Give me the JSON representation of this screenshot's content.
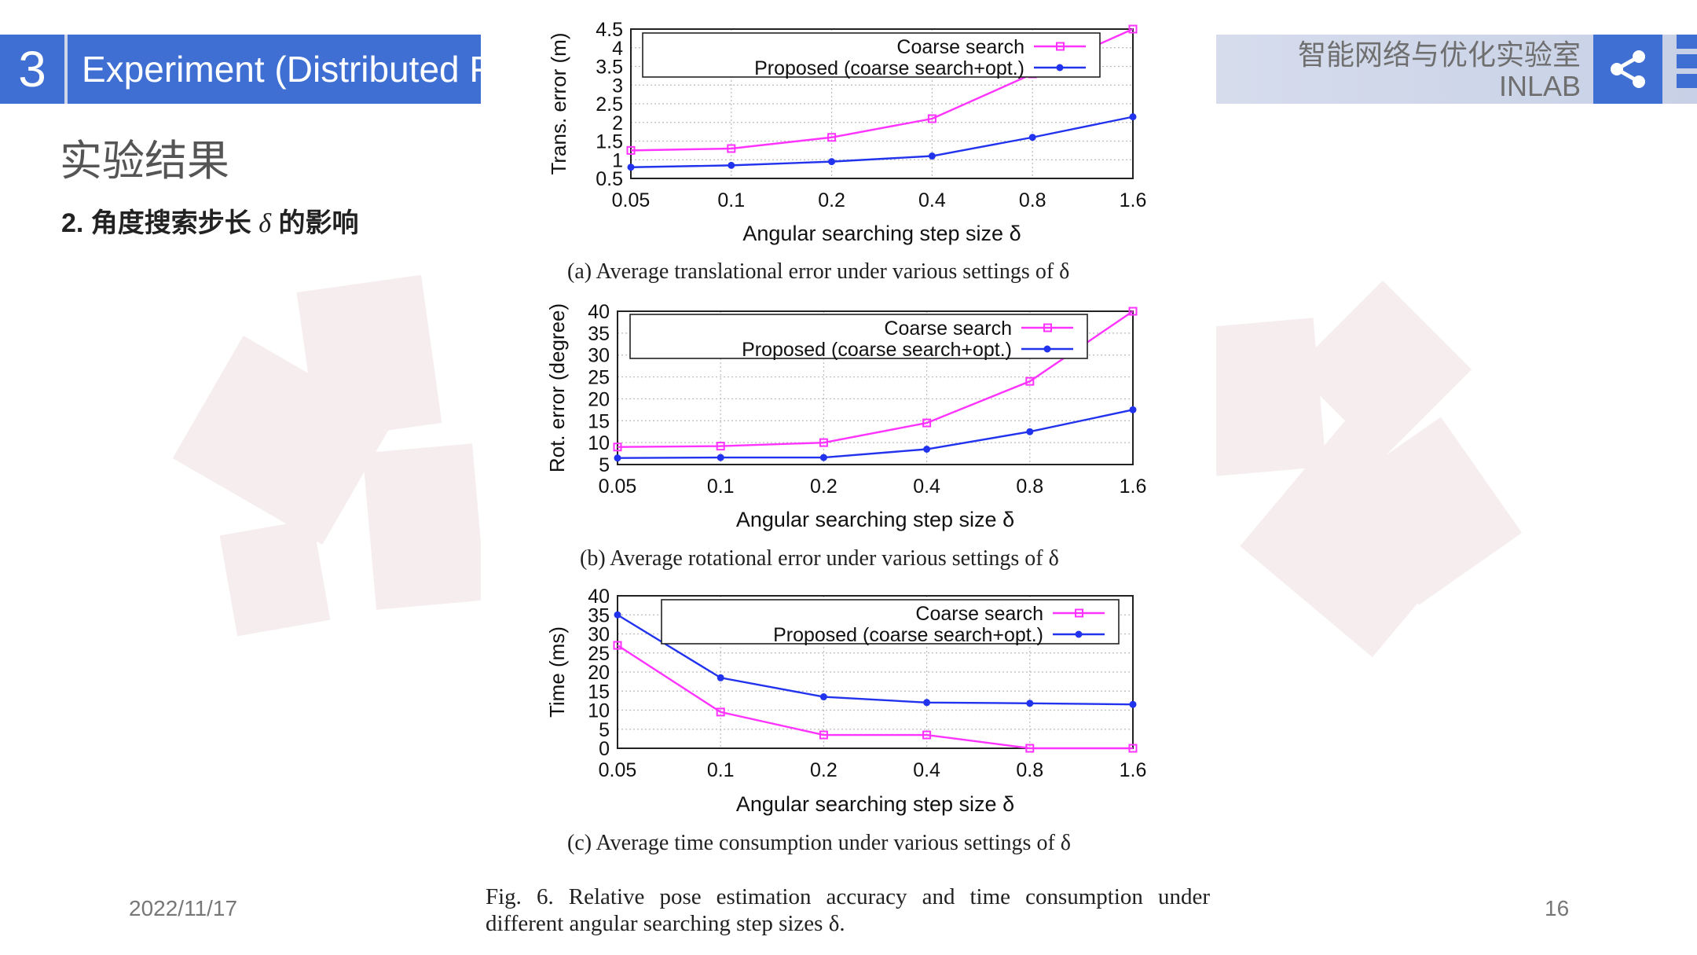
{
  "header": {
    "section_number": "3",
    "section_title": "Experiment (Distributed F",
    "lab_name_cn": "智能网络与优化实验室",
    "lab_name_en": "INLAB",
    "accent_color": "#3f6fd3"
  },
  "icons": {
    "share": "share-icon",
    "menu": "menu-icon"
  },
  "slide": {
    "subtitle": "实验结果",
    "subheading_prefix": "2. 角度搜索步长",
    "subheading_delta": "δ",
    "subheading_suffix": "的影响",
    "date": "2022/11/17",
    "page_number": "16"
  },
  "figure": {
    "caption": "Fig. 6.    Relative pose estimation accuracy and time consumption under different angular searching step sizes δ."
  },
  "chart_data": [
    {
      "type": "line",
      "caption": "(a) Average translational error under various settings of δ",
      "xlabel": "Angular searching step size δ",
      "ylabel": "Trans. error (m)",
      "categories": [
        "0.05",
        "0.1",
        "0.2",
        "0.4",
        "0.8",
        "1.6"
      ],
      "ylim": [
        0.5,
        4.5
      ],
      "yticks": [
        "0.5",
        "1",
        "1.5",
        "2",
        "2.5",
        "3",
        "3.5",
        "4",
        "4.5"
      ],
      "grid": true,
      "legend_position": "top",
      "series": [
        {
          "name": "Coarse search",
          "color": "#ff33ff",
          "marker": "square",
          "values": [
            1.25,
            1.3,
            1.6,
            2.1,
            3.3,
            4.5
          ]
        },
        {
          "name": "Proposed (coarse search+opt.)",
          "color": "#2233ee",
          "marker": "dot",
          "values": [
            0.8,
            0.85,
            0.95,
            1.1,
            1.6,
            2.15
          ]
        }
      ]
    },
    {
      "type": "line",
      "caption": "(b) Average rotational error under various settings of δ",
      "xlabel": "Angular searching step size δ",
      "ylabel": "Rot. error (degree)",
      "categories": [
        "0.05",
        "0.1",
        "0.2",
        "0.4",
        "0.8",
        "1.6"
      ],
      "ylim": [
        5,
        40
      ],
      "yticks": [
        "5",
        "10",
        "15",
        "20",
        "25",
        "30",
        "35",
        "40"
      ],
      "grid": true,
      "legend_position": "top",
      "series": [
        {
          "name": "Coarse search",
          "color": "#ff33ff",
          "marker": "square",
          "values": [
            9,
            9.2,
            10,
            14.5,
            24,
            40
          ]
        },
        {
          "name": "Proposed (coarse search+opt.)",
          "color": "#2233ee",
          "marker": "dot",
          "values": [
            6.5,
            6.6,
            6.6,
            8.5,
            12.5,
            17.5
          ]
        }
      ]
    },
    {
      "type": "line",
      "caption": "(c) Average time consumption under various settings of δ",
      "xlabel": "Angular searching step size δ",
      "ylabel": "Time (ms)",
      "categories": [
        "0.05",
        "0.1",
        "0.2",
        "0.4",
        "0.8",
        "1.6"
      ],
      "ylim": [
        0,
        40
      ],
      "yticks": [
        "0",
        "5",
        "10",
        "15",
        "20",
        "25",
        "30",
        "35",
        "40"
      ],
      "grid": true,
      "legend_position": "top",
      "series": [
        {
          "name": "Coarse search",
          "color": "#ff33ff",
          "marker": "square",
          "values": [
            27,
            9.5,
            3.5,
            3.5,
            0,
            0
          ]
        },
        {
          "name": "Proposed (coarse search+opt.)",
          "color": "#2233ee",
          "marker": "dot",
          "values": [
            35,
            18.5,
            13.5,
            12,
            11.8,
            11.5
          ]
        }
      ]
    }
  ]
}
